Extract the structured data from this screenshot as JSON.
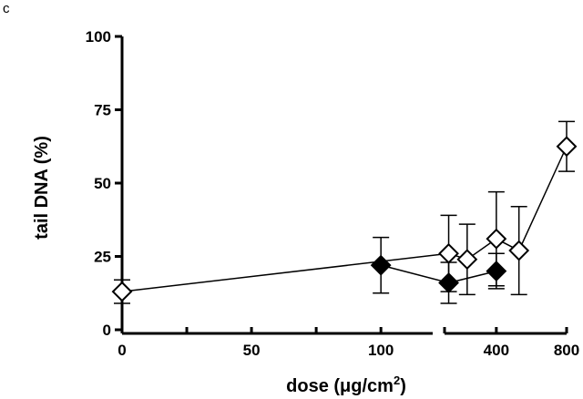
{
  "panel_label": "c",
  "chart_data": {
    "type": "scatter",
    "title": "",
    "xlabel": "dose (μg/cm²)",
    "xlabel_parts": {
      "main": "dose (μg/cm",
      "sup": "2",
      "end": ")"
    },
    "ylabel": "tail DNA (%)",
    "ylim": [
      0,
      100
    ],
    "yticks": [
      "0",
      "25",
      "50",
      "75",
      "100"
    ],
    "grid": false,
    "legend": "none",
    "x_axis_segments": [
      {
        "scale": "linear",
        "range": [
          0,
          120
        ],
        "ticks": [
          "0",
          "50",
          "100"
        ],
        "minor_step": 25
      },
      {
        "scale": "log",
        "range": [
          240,
          800
        ],
        "ticks": [
          "400",
          "800"
        ]
      }
    ],
    "series": [
      {
        "marker": "diamond-open",
        "connect": true,
        "points": [
          {
            "x": 0,
            "y": 13,
            "err": 4
          },
          {
            "x": 250,
            "y": 26,
            "err": 13
          },
          {
            "x": 300,
            "y": 24,
            "err": 12
          },
          {
            "x": 400,
            "y": 31,
            "err": 16
          },
          {
            "x": 500,
            "y": 27,
            "err": 15
          },
          {
            "x": 800,
            "y": 62.5,
            "err": 8.5
          }
        ]
      },
      {
        "marker": "diamond-filled",
        "connect": true,
        "points": [
          {
            "x": 100,
            "y": 22,
            "err": 9.5
          },
          {
            "x": 250,
            "y": 16,
            "err": 7
          },
          {
            "x": 400,
            "y": 20,
            "err": 6
          }
        ]
      }
    ]
  }
}
